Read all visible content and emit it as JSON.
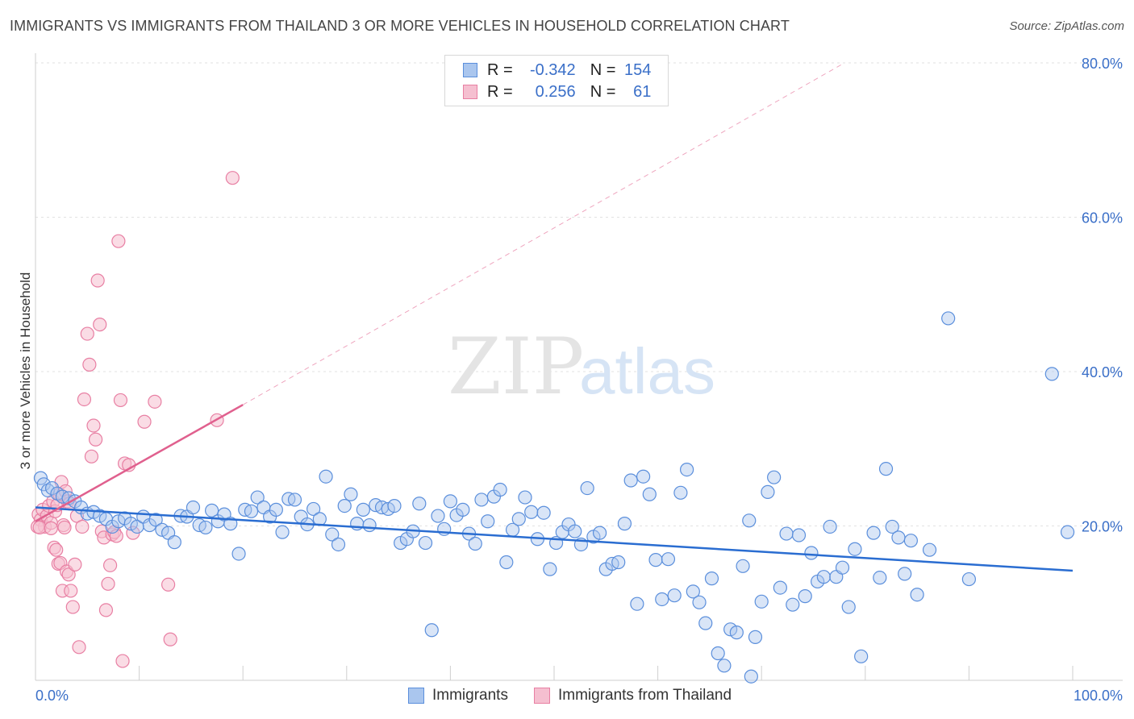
{
  "title": "IMMIGRANTS VS IMMIGRANTS FROM THAILAND 3 OR MORE VEHICLES IN HOUSEHOLD CORRELATION CHART",
  "source": "Source: ZipAtlas.com",
  "watermark": {
    "zip": "ZIP",
    "atlas": "atlas"
  },
  "legend_top": {
    "row1": {
      "r_label": "R =",
      "r_value": "-0.342",
      "n_label": "N =",
      "n_value": "154"
    },
    "row2": {
      "r_label": "R =",
      "r_value": "0.256",
      "n_label": "N =",
      "n_value": "61"
    }
  },
  "legend_bottom": {
    "blue": "Immigrants",
    "pink": "Immigrants from Thailand"
  },
  "colors": {
    "blue": "#5b8fdc",
    "blue_fill": "#aac6ee",
    "blue_line": "#2a6dd1",
    "pink": "#e87fa3",
    "pink_fill": "#f5bfd0",
    "pink_line": "#e0608e",
    "tick": "#3a6fc8"
  },
  "chart_data": {
    "type": "scatter",
    "ylabel": "3 or more Vehicles in Household",
    "xlim": [
      0,
      100
    ],
    "ylim": [
      0,
      80
    ],
    "x_ticks": [
      {
        "v": 0,
        "label": "0.0%"
      },
      {
        "v": 100,
        "label": "100.0%"
      }
    ],
    "y_ticks": [
      {
        "v": 20,
        "label": "20.0%"
      },
      {
        "v": 40,
        "label": "40.0%"
      },
      {
        "v": 60,
        "label": "60.0%"
      },
      {
        "v": 80,
        "label": "80.0%"
      }
    ],
    "grid": true,
    "series": [
      {
        "name": "Immigrants",
        "trend": {
          "x0": 0,
          "y0": 22.4,
          "x1": 100,
          "y1": 14.2
        },
        "points": [
          [
            0.5,
            26.2
          ],
          [
            0.8,
            25.4
          ],
          [
            1.2,
            24.6
          ],
          [
            1.6,
            24.9
          ],
          [
            2.1,
            24.2
          ],
          [
            2.6,
            23.8
          ],
          [
            3.2,
            23.6
          ],
          [
            3.8,
            23.2
          ],
          [
            4.4,
            22.4
          ],
          [
            5,
            21.6
          ],
          [
            5.6,
            21.8
          ],
          [
            6.2,
            21.3
          ],
          [
            6.8,
            20.9
          ],
          [
            7.4,
            19.9
          ],
          [
            8,
            20.6
          ],
          [
            8.6,
            21
          ],
          [
            9.2,
            20.3
          ],
          [
            9.8,
            19.9
          ],
          [
            10.4,
            21.2
          ],
          [
            11,
            20.1
          ],
          [
            11.6,
            20.8
          ],
          [
            12.2,
            19.5
          ],
          [
            12.8,
            19.1
          ],
          [
            13.4,
            17.9
          ],
          [
            14,
            21.3
          ],
          [
            14.6,
            21.2
          ],
          [
            15.2,
            22.4
          ],
          [
            15.8,
            20.1
          ],
          [
            16.4,
            19.8
          ],
          [
            17,
            22
          ],
          [
            17.6,
            20.6
          ],
          [
            18.2,
            21.5
          ],
          [
            18.8,
            20.3
          ],
          [
            19.6,
            16.4
          ],
          [
            20.2,
            22.1
          ],
          [
            20.8,
            21.9
          ],
          [
            21.4,
            23.7
          ],
          [
            22,
            22.4
          ],
          [
            22.6,
            21.2
          ],
          [
            23.2,
            22.1
          ],
          [
            23.8,
            19.2
          ],
          [
            24.4,
            23.5
          ],
          [
            25,
            23.4
          ],
          [
            25.6,
            21.2
          ],
          [
            26.2,
            20.2
          ],
          [
            26.8,
            22.2
          ],
          [
            27.4,
            20.9
          ],
          [
            28,
            26.4
          ],
          [
            28.6,
            18.9
          ],
          [
            29.2,
            17.6
          ],
          [
            29.8,
            22.6
          ],
          [
            30.4,
            24.1
          ],
          [
            31,
            20.3
          ],
          [
            31.6,
            22.1
          ],
          [
            32.2,
            20.1
          ],
          [
            32.8,
            22.7
          ],
          [
            33.4,
            22.4
          ],
          [
            34,
            22.2
          ],
          [
            34.6,
            22.6
          ],
          [
            35.2,
            17.8
          ],
          [
            35.8,
            18.3
          ],
          [
            36.4,
            19.3
          ],
          [
            37,
            22.9
          ],
          [
            37.6,
            17.8
          ],
          [
            38.2,
            6.5
          ],
          [
            38.8,
            21.3
          ],
          [
            39.4,
            19.6
          ],
          [
            40,
            23.2
          ],
          [
            40.6,
            21.4
          ],
          [
            41.2,
            22.1
          ],
          [
            41.8,
            19
          ],
          [
            42.4,
            17.7
          ],
          [
            43,
            23.4
          ],
          [
            43.6,
            20.6
          ],
          [
            44.2,
            23.8
          ],
          [
            44.8,
            24.7
          ],
          [
            45.4,
            15.3
          ],
          [
            46,
            19.5
          ],
          [
            46.6,
            20.9
          ],
          [
            47.2,
            23.7
          ],
          [
            47.8,
            21.8
          ],
          [
            48.4,
            18.3
          ],
          [
            49,
            21.7
          ],
          [
            49.6,
            14.4
          ],
          [
            50.2,
            17.8
          ],
          [
            50.8,
            19.2
          ],
          [
            51.4,
            20.2
          ],
          [
            52,
            19.3
          ],
          [
            52.6,
            17.6
          ],
          [
            53.2,
            24.9
          ],
          [
            53.8,
            18.6
          ],
          [
            54.4,
            19.1
          ],
          [
            55,
            14.4
          ],
          [
            55.6,
            15.1
          ],
          [
            56.2,
            15.3
          ],
          [
            56.8,
            20.3
          ],
          [
            57.4,
            25.9
          ],
          [
            58,
            9.9
          ],
          [
            58.6,
            26.4
          ],
          [
            59.2,
            24.1
          ],
          [
            59.8,
            15.6
          ],
          [
            60.4,
            10.5
          ],
          [
            61,
            15.7
          ],
          [
            61.6,
            11
          ],
          [
            62.2,
            24.3
          ],
          [
            62.8,
            27.3
          ],
          [
            63.4,
            11.5
          ],
          [
            64,
            10.1
          ],
          [
            64.6,
            7.4
          ],
          [
            65.2,
            13.2
          ],
          [
            65.8,
            3.5
          ],
          [
            66.4,
            1.9
          ],
          [
            67,
            6.6
          ],
          [
            67.6,
            6.2
          ],
          [
            68.2,
            14.8
          ],
          [
            68.8,
            20.7
          ],
          [
            69.4,
            5.6
          ],
          [
            70,
            10.2
          ],
          [
            70.6,
            24.4
          ],
          [
            71.2,
            26.3
          ],
          [
            71.8,
            12
          ],
          [
            72.4,
            19
          ],
          [
            73,
            9.8
          ],
          [
            73.6,
            18.8
          ],
          [
            74.2,
            10.9
          ],
          [
            74.8,
            16.5
          ],
          [
            75.4,
            12.8
          ],
          [
            76,
            13.4
          ],
          [
            76.6,
            19.9
          ],
          [
            77.2,
            13.4
          ],
          [
            77.8,
            14.6
          ],
          [
            78.4,
            9.5
          ],
          [
            79,
            17
          ],
          [
            79.6,
            3.1
          ],
          [
            80.8,
            19.1
          ],
          [
            81.4,
            13.3
          ],
          [
            82,
            27.4
          ],
          [
            82.6,
            19.9
          ],
          [
            83.2,
            18.5
          ],
          [
            83.8,
            13.8
          ],
          [
            84.4,
            18.1
          ],
          [
            85,
            11.1
          ],
          [
            86.2,
            16.9
          ],
          [
            88,
            46.9
          ],
          [
            90,
            13.1
          ],
          [
            98,
            39.7
          ],
          [
            99.5,
            19.2
          ],
          [
            69,
            0.5
          ]
        ]
      },
      {
        "name": "Immigrants from Thailand",
        "trend": {
          "x0": 0,
          "y0": 20.6,
          "x1": 20,
          "y1": 35.7
        },
        "trend_ext": {
          "x0": 20,
          "y0": 35.7,
          "x1": 78,
          "y1": 80
        },
        "points": [
          [
            0.3,
            21.5
          ],
          [
            0.5,
            20.8
          ],
          [
            0.7,
            22.1
          ],
          [
            0.9,
            19.9
          ],
          [
            1.1,
            21.3
          ],
          [
            1.3,
            22.6
          ],
          [
            1.5,
            20.4
          ],
          [
            1.7,
            23.2
          ],
          [
            1.9,
            21.9
          ],
          [
            2.1,
            22.7
          ],
          [
            2.3,
            24.1
          ],
          [
            2.5,
            25.7
          ],
          [
            2.7,
            20.1
          ],
          [
            2.9,
            24.5
          ],
          [
            3.1,
            23.2
          ],
          [
            3.3,
            22.9
          ],
          [
            0.2,
            19.9
          ],
          [
            0.4,
            19.8
          ],
          [
            1.5,
            19.7
          ],
          [
            1.8,
            17.2
          ],
          [
            2,
            16.9
          ],
          [
            2.2,
            15.1
          ],
          [
            2.4,
            15.2
          ],
          [
            2.6,
            11.6
          ],
          [
            2.8,
            19.8
          ],
          [
            3,
            14.1
          ],
          [
            3.2,
            13.7
          ],
          [
            3.4,
            11.6
          ],
          [
            3.6,
            9.5
          ],
          [
            3.8,
            15
          ],
          [
            4,
            21.3
          ],
          [
            4.2,
            4.3
          ],
          [
            4.5,
            19.9
          ],
          [
            4.7,
            36.4
          ],
          [
            5,
            44.9
          ],
          [
            5.2,
            40.9
          ],
          [
            5.4,
            29
          ],
          [
            5.6,
            33
          ],
          [
            5.8,
            31.2
          ],
          [
            6,
            51.8
          ],
          [
            6.2,
            46.1
          ],
          [
            6.4,
            19.3
          ],
          [
            6.6,
            18.5
          ],
          [
            6.8,
            9.1
          ],
          [
            7,
            12.5
          ],
          [
            7.2,
            14.9
          ],
          [
            7.4,
            18.9
          ],
          [
            7.6,
            19.2
          ],
          [
            7.8,
            18.7
          ],
          [
            8,
            56.9
          ],
          [
            8.2,
            36.3
          ],
          [
            8.4,
            2.5
          ],
          [
            8.6,
            28.1
          ],
          [
            9,
            27.9
          ],
          [
            9.4,
            19.1
          ],
          [
            10.5,
            33.5
          ],
          [
            11.5,
            36.1
          ],
          [
            12.8,
            12.4
          ],
          [
            13,
            5.3
          ],
          [
            17.5,
            33.7
          ],
          [
            19,
            65.1
          ]
        ]
      }
    ]
  }
}
